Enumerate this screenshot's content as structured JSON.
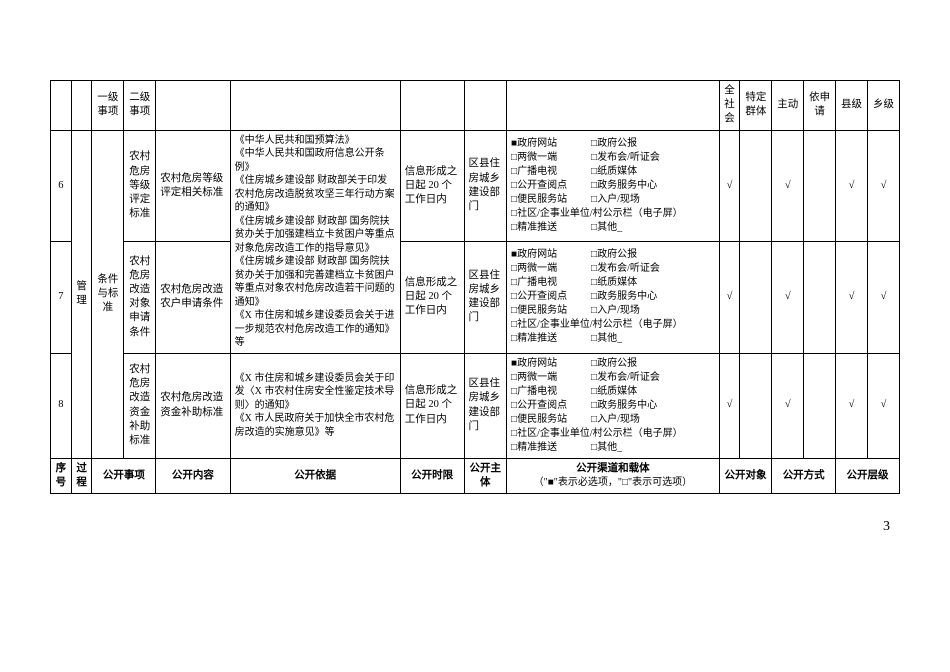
{
  "header": {
    "c2": "一级事项",
    "c3": "二级事项",
    "c10a": "全社会",
    "c10b": "特定群体",
    "c11a": "主动",
    "c11b": "依申请",
    "c12a": "县级",
    "c12b": "乡级"
  },
  "footer": {
    "c1": "序号",
    "c2": "过程",
    "c3": "公开事项",
    "c4": "公开内容",
    "c5": "公开依据",
    "c6": "公开时限",
    "c7": "公开主体",
    "c8": "公开渠道和载体",
    "c8sub": "（\"■\"表示必选项，\"□\"表示可选项）",
    "c9": "公开对象",
    "c10": "公开方式",
    "c11": "公开层级"
  },
  "process": "管理",
  "condition_label": "条件与标准",
  "basis_shared": "《中华人民共和国预算法》\n《中华人民共和国政府信息公开条例》\n《住房城乡建设部 财政部关于印发农村危房改造脱贫攻坚三年行动方案的通知》\n《住房城乡建设部 财政部 国务院扶贫办关于加强建档立卡贫困户等重点对象危房改造工作的指导意见》\n《住房城乡建设部 财政部 国务院扶贫办关于加强和完善建档立卡贫困户等重点对象农村危房改造若干问题的通知》\n《X 市住房和城乡建设委员会关于进一步规范农村危房改造工作的通知》等",
  "basis_row8": "《X 市住房和城乡建设委员会关于印发〈X 市农村住房安全性鉴定技术导则〉的通知》\n《X 市人民政府关于加快全市农村危房改造的实施意见》等",
  "rows": [
    {
      "num": "6",
      "level3": "农村危房等级评定标准",
      "content": "农村危房等级评定相关标准",
      "time": "信息形成之日起 20 个工作日内",
      "subject": "区县住房城乡建设部门",
      "chk_all": "√",
      "chk_group": "",
      "chk_active": "√",
      "chk_apply": "",
      "chk_county": "√",
      "chk_town": "√"
    },
    {
      "num": "7",
      "level3": "农村危房改造对象申请条件",
      "content": "农村危房改造农户申请条件",
      "time": "信息形成之日起 20 个工作日内",
      "subject": "区县住房城乡建设部门",
      "chk_all": "√",
      "chk_group": "",
      "chk_active": "√",
      "chk_apply": "",
      "chk_county": "√",
      "chk_town": "√"
    },
    {
      "num": "8",
      "level3": "农村危房改造资金补助标准",
      "content": "农村危房改造资金补助标准",
      "time": "信息形成之日起 20 个工作日内",
      "subject": "区县住房城乡建设部门",
      "chk_all": "√",
      "chk_group": "",
      "chk_active": "√",
      "chk_apply": "",
      "chk_county": "√",
      "chk_town": "√"
    }
  ],
  "channels": {
    "r1a": "■政府网站",
    "r1b": "□政府公报",
    "r2a": "□两微一端",
    "r2b": "□发布会/听证会",
    "r3a": "□广播电视",
    "r3b": "□纸质媒体",
    "r4a": "□公开查阅点",
    "r4b": "□政务服务中心",
    "r5a": "□便民服务站",
    "r5b": "□入户/现场",
    "r6": "□社区/企事业单位/村公示栏（电子屏）",
    "r7a": "□精准推送",
    "r7b": "□其他_"
  },
  "page_number": "3"
}
